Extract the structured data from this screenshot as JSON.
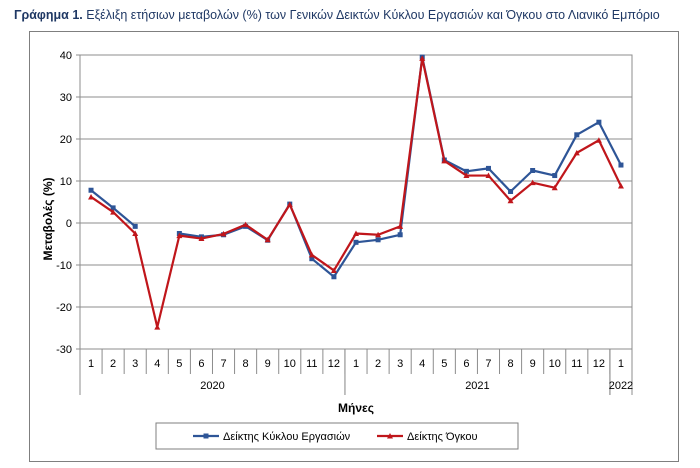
{
  "caption": {
    "prefix": "Γράφημα 1.",
    "text": "Εξέλιξη ετήσιων μεταβολών (%) των Γενικών Δεικτών Κύκλου Εργασιών και Όγκου στο Λιανικό Εμπόριο"
  },
  "chart_data": {
    "type": "line",
    "xlabel": "Μήνες",
    "ylabel": "Μεταβολές  (%)",
    "ylim": [
      -30,
      40
    ],
    "yticks": [
      -30,
      -20,
      -10,
      0,
      10,
      20,
      30,
      40
    ],
    "grid": true,
    "legend_position": "bottom",
    "months": [
      "1",
      "2",
      "3",
      "4",
      "5",
      "6",
      "7",
      "8",
      "9",
      "10",
      "11",
      "12",
      "1",
      "2",
      "3",
      "4",
      "5",
      "6",
      "7",
      "8",
      "9",
      "10",
      "11",
      "12",
      "1"
    ],
    "years": [
      {
        "label": "2020",
        "start": 0,
        "end": 11
      },
      {
        "label": "2021",
        "start": 12,
        "end": 23
      },
      {
        "label": "2022",
        "start": 24,
        "end": 24
      }
    ],
    "series": [
      {
        "name": "Δείκτης Κύκλου Εργασιών",
        "color": "#2e5597",
        "values": [
          7.8,
          3.6,
          -0.8,
          null,
          -2.5,
          -3.3,
          -2.8,
          -0.8,
          -4.1,
          4.5,
          -8.5,
          -12.8,
          -4.6,
          -4.0,
          -2.8,
          39.5,
          15.0,
          12.3,
          13.0,
          7.5,
          12.5,
          11.3,
          21.0,
          24.0,
          13.8
        ]
      },
      {
        "name": "Δείκτης Όγκου",
        "color": "#c0161b",
        "values": [
          6.2,
          2.6,
          -2.5,
          -24.8,
          -3.0,
          -3.7,
          -2.6,
          -0.4,
          -4.0,
          4.4,
          -7.6,
          -11.3,
          -2.5,
          -2.8,
          -0.8,
          39.2,
          14.8,
          11.3,
          11.3,
          5.3,
          9.6,
          8.4,
          16.7,
          19.7,
          8.8
        ]
      }
    ]
  }
}
